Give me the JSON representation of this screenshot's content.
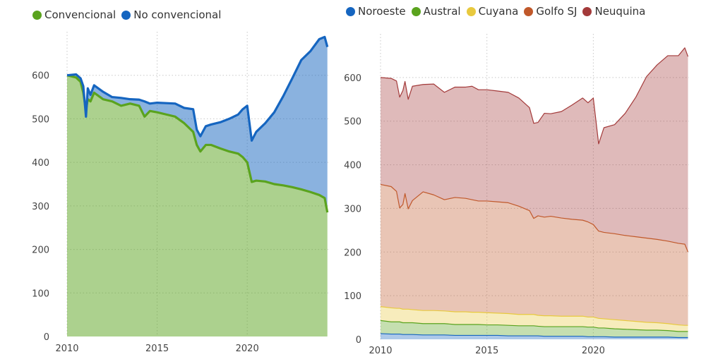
{
  "chart_data": [
    {
      "type": "area",
      "stacked": true,
      "legend": "top-left",
      "grid": true,
      "xlim": [
        2010,
        2024.5
      ],
      "ylim": [
        0,
        700
      ],
      "x_ticks": [
        "2010",
        "2015",
        "2020"
      ],
      "y_ticks": [
        "0",
        "100",
        "200",
        "300",
        "400",
        "500",
        "600"
      ],
      "colors": {
        "Convencional": "#5aa31e",
        "No convencional": "#1565c0"
      },
      "x": [
        2010.0,
        2010.5,
        2010.75,
        2010.9,
        2011.05,
        2011.15,
        2011.3,
        2011.5,
        2012.0,
        2012.5,
        2013.0,
        2013.5,
        2014.0,
        2014.3,
        2014.6,
        2015.0,
        2015.5,
        2016.0,
        2016.5,
        2017.0,
        2017.2,
        2017.4,
        2017.7,
        2018.0,
        2018.5,
        2019.0,
        2019.5,
        2019.75,
        2020.0,
        2020.25,
        2020.5,
        2021.0,
        2021.5,
        2022.0,
        2022.5,
        2023.0,
        2023.5,
        2024.0,
        2024.3,
        2024.45
      ],
      "series": [
        {
          "name": "Convencional",
          "values": [
            600,
            595,
            585,
            560,
            520,
            545,
            540,
            560,
            545,
            540,
            530,
            535,
            530,
            505,
            518,
            515,
            510,
            505,
            490,
            470,
            440,
            425,
            440,
            440,
            432,
            425,
            420,
            412,
            400,
            355,
            358,
            356,
            350,
            347,
            343,
            338,
            332,
            325,
            318,
            285
          ]
        },
        {
          "name": "No convencional",
          "values": [
            0,
            7,
            8,
            15,
            -15,
            25,
            15,
            17,
            17,
            10,
            18,
            10,
            14,
            35,
            17,
            22,
            26,
            30,
            35,
            52,
            35,
            35,
            43,
            47,
            60,
            75,
            90,
            110,
            130,
            95,
            112,
            134,
            165,
            205,
            250,
            297,
            323,
            358,
            370,
            380
          ]
        }
      ]
    },
    {
      "type": "area",
      "stacked": true,
      "legend": "top-left",
      "grid": true,
      "xlim": [
        2010,
        2024.5
      ],
      "ylim": [
        0,
        700
      ],
      "x_ticks": [
        "2010",
        "2015",
        "2020"
      ],
      "y_ticks": [
        "0",
        "100",
        "200",
        "300",
        "400",
        "500",
        "600"
      ],
      "colors": {
        "Noroeste": "#1565c0",
        "Austral": "#5aa31e",
        "Cuyana": "#e8c93e",
        "Golfo SJ": "#c0582a",
        "Neuquina": "#a33a3a"
      },
      "x": [
        2010.0,
        2010.5,
        2010.75,
        2010.9,
        2011.05,
        2011.15,
        2011.3,
        2011.5,
        2012.0,
        2012.5,
        2013.0,
        2013.5,
        2014.0,
        2014.3,
        2014.6,
        2015.0,
        2015.5,
        2016.0,
        2016.5,
        2017.0,
        2017.2,
        2017.4,
        2017.7,
        2018.0,
        2018.5,
        2019.0,
        2019.5,
        2019.75,
        2020.0,
        2020.25,
        2020.5,
        2021.0,
        2021.5,
        2022.0,
        2022.5,
        2023.0,
        2023.5,
        2024.0,
        2024.3,
        2024.45
      ],
      "series": [
        {
          "name": "Noroeste",
          "values": [
            13,
            12,
            12,
            12,
            11,
            11,
            11,
            11,
            10,
            10,
            10,
            9,
            9,
            9,
            9,
            9,
            9,
            8,
            8,
            8,
            8,
            8,
            7,
            7,
            7,
            7,
            7,
            6,
            6,
            6,
            6,
            5,
            5,
            5,
            5,
            5,
            5,
            4,
            4,
            4
          ]
        },
        {
          "name": "Austral",
          "values": [
            30,
            28,
            28,
            28,
            27,
            27,
            27,
            27,
            26,
            26,
            26,
            25,
            25,
            25,
            25,
            24,
            24,
            24,
            23,
            23,
            23,
            22,
            22,
            22,
            22,
            22,
            22,
            22,
            22,
            20,
            20,
            19,
            18,
            17,
            16,
            16,
            15,
            14,
            14,
            14
          ]
        },
        {
          "name": "Cuyana",
          "values": [
            32,
            32,
            31,
            31,
            31,
            31,
            31,
            30,
            30,
            30,
            29,
            29,
            29,
            28,
            28,
            28,
            27,
            27,
            26,
            26,
            26,
            25,
            25,
            25,
            24,
            24,
            24,
            23,
            23,
            22,
            21,
            21,
            20,
            19,
            18,
            17,
            16,
            15,
            14,
            14
          ]
        },
        {
          "name": "Golfo SJ",
          "values": [
            280,
            278,
            268,
            230,
            240,
            265,
            230,
            250,
            272,
            265,
            255,
            262,
            260,
            258,
            255,
            256,
            255,
            254,
            248,
            238,
            220,
            228,
            226,
            228,
            225,
            222,
            220,
            218,
            212,
            200,
            198,
            197,
            195,
            194,
            193,
            191,
            189,
            187,
            186,
            168
          ]
        },
        {
          "name": "Neuquina",
          "values": [
            245,
            248,
            253,
            254,
            261,
            257,
            251,
            262,
            246,
            254,
            246,
            253,
            255,
            260,
            255,
            255,
            254,
            253,
            248,
            236,
            218,
            214,
            238,
            235,
            244,
            262,
            280,
            273,
            290,
            200,
            240,
            250,
            280,
            320,
            370,
            400,
            425,
            430,
            450,
            448
          ]
        }
      ]
    }
  ]
}
